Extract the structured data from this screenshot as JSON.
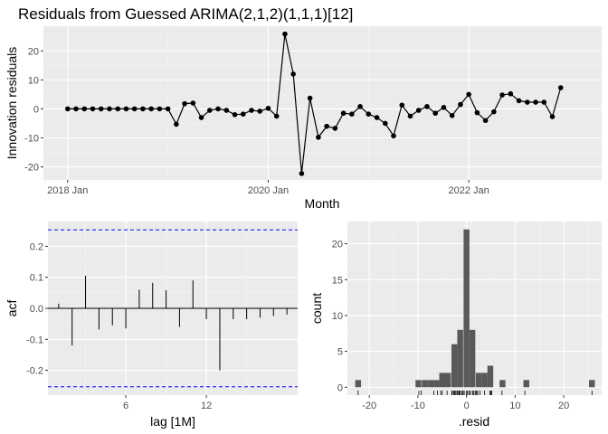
{
  "chart_data": [
    {
      "type": "line",
      "title": "Residuals from Guessed ARIMA(2,1,2)(1,1,1)[12]",
      "xlabel": "Month",
      "ylabel": "Innovation residuals",
      "x_tick_labels": [
        "2018 Jan",
        "2020 Jan",
        "2022 Jan"
      ],
      "x_tick_positions": [
        0,
        24,
        48
      ],
      "y_ticks": [
        -20,
        -10,
        0,
        10,
        20
      ],
      "xlim": [
        -2.9,
        63.9
      ],
      "ylim": [
        -24.5,
        28.5
      ],
      "grid": true,
      "start_month": "2018 Jan",
      "values": [
        0,
        0,
        0,
        0,
        0,
        0,
        0,
        0,
        0,
        0,
        0,
        0,
        0,
        -5.3,
        1.8,
        2,
        -3,
        -0.5,
        0,
        -0.5,
        -2,
        -1.8,
        -0.5,
        -0.8,
        0.2,
        -2.5,
        25.8,
        12,
        -22.3,
        3.7,
        -9.8,
        -6,
        -6.7,
        -1.5,
        -1.8,
        0.8,
        -1.8,
        -3,
        -5,
        -9.3,
        1.3,
        -2.5,
        -0.5,
        0.8,
        -1.5,
        0.5,
        -2.3,
        1.5,
        5,
        -1.3,
        -4,
        -1,
        4.8,
        5.2,
        2.8,
        2.3,
        2.3,
        2.3,
        -2.7,
        7.3
      ]
    },
    {
      "type": "bar",
      "xlabel": "lag [1M]",
      "ylabel": "acf",
      "lags": [
        1,
        2,
        3,
        4,
        5,
        6,
        7,
        8,
        9,
        10,
        11,
        12,
        13,
        14,
        15,
        16,
        17,
        18
      ],
      "values": [
        0.015,
        -0.12,
        0.105,
        -0.068,
        -0.055,
        -0.065,
        0.06,
        0.082,
        0.058,
        -0.06,
        0.09,
        -0.035,
        -0.2,
        -0.035,
        -0.035,
        -0.03,
        -0.025,
        -0.02
      ],
      "confidence_bounds": [
        -0.253,
        0.253
      ],
      "x_ticks": [
        6,
        12
      ],
      "y_ticks": [
        -0.2,
        -0.1,
        0.0,
        0.1,
        0.2
      ],
      "y_tick_labels": [
        "-0.2",
        "-0.1",
        "0.0",
        "0.1",
        "0.2"
      ],
      "xlim": [
        0.2,
        18.8
      ],
      "ylim": [
        -0.28,
        0.28
      ],
      "grid": true
    },
    {
      "type": "histogram",
      "xlabel": ".resid",
      "ylabel": "count",
      "bin_width": 1.2,
      "bins": [
        {
          "x": -22.3,
          "count": 1
        },
        {
          "x": -9.9,
          "count": 1
        },
        {
          "x": -8.6,
          "count": 1
        },
        {
          "x": -7.4,
          "count": 1
        },
        {
          "x": -6.2,
          "count": 1
        },
        {
          "x": -5,
          "count": 2
        },
        {
          "x": -3.8,
          "count": 2
        },
        {
          "x": -2.5,
          "count": 6
        },
        {
          "x": -1.3,
          "count": 8
        },
        {
          "x": 0,
          "count": 22
        },
        {
          "x": 1.2,
          "count": 8
        },
        {
          "x": 2.5,
          "count": 2
        },
        {
          "x": 3.7,
          "count": 2
        },
        {
          "x": 4.9,
          "count": 3
        },
        {
          "x": 7.4,
          "count": 1
        },
        {
          "x": 12.3,
          "count": 1
        },
        {
          "x": 25.8,
          "count": 1
        }
      ],
      "rug": [
        -22.3,
        -9.8,
        -9.3,
        -6.7,
        -6,
        -5.3,
        -5,
        -4,
        -3,
        -3,
        -2.7,
        -2.5,
        -2.5,
        -2.3,
        -2,
        -1.8,
        -1.8,
        -1.8,
        -1.5,
        -1.5,
        -1.3,
        -1,
        -0.8,
        -0.5,
        -0.5,
        -0.5,
        -0.5,
        0,
        0.2,
        0.5,
        0.8,
        0.8,
        1.3,
        1.5,
        1.8,
        2,
        2.3,
        2.3,
        2.3,
        2.8,
        3.7,
        4.8,
        5,
        5.2,
        7.3,
        12,
        25.8
      ],
      "x_ticks": [
        -20,
        -10,
        0,
        10,
        20
      ],
      "y_ticks": [
        0,
        5,
        10,
        15,
        20
      ],
      "xlim": [
        -24.5,
        27.8
      ],
      "ylim": [
        -1.1,
        23.1
      ],
      "grid": true
    }
  ],
  "colors": {
    "panel": "#ebebeb",
    "line": "#000000",
    "bar": "#595959",
    "acf_bound": "#0000ff"
  }
}
